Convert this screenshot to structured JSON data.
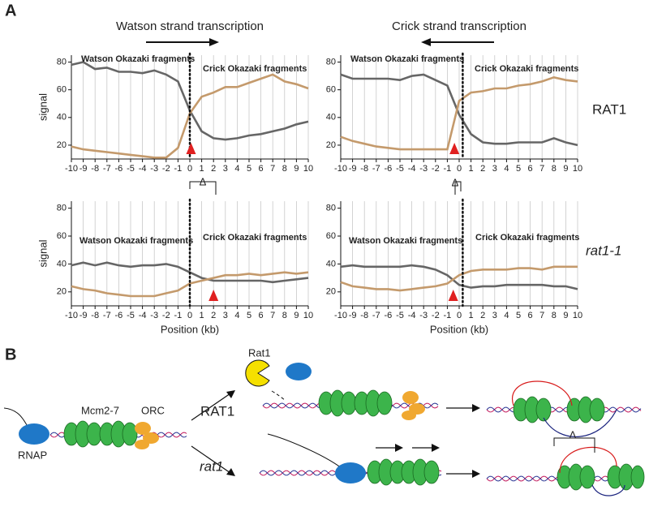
{
  "chart_data": [
    {
      "type": "line",
      "title": "Watson strand transcription",
      "ylabel": "signal",
      "x": [
        -10,
        -9,
        -8,
        -7,
        -6,
        -5,
        -4,
        -3,
        -2,
        -1,
        0,
        1,
        2,
        3,
        4,
        5,
        6,
        7,
        8,
        9,
        10
      ],
      "xlim": [
        -10,
        10
      ],
      "xticks": [
        -10,
        -9,
        -8,
        -7,
        -6,
        -5,
        -4,
        -3,
        -2,
        -1,
        0,
        1,
        2,
        3,
        4,
        5,
        6,
        7,
        8,
        9,
        10
      ],
      "ylim": [
        10,
        85
      ],
      "yticks": [
        20,
        40,
        60,
        80
      ],
      "grid": true,
      "origin_x": 0,
      "peak_x": 0.1,
      "series": [
        {
          "name": "Watson Okazaki fragments",
          "color": "#666666",
          "values": [
            78,
            80,
            75,
            76,
            73,
            73,
            72,
            74,
            71,
            66,
            45,
            30,
            25,
            24,
            25,
            27,
            28,
            30,
            32,
            35,
            37
          ]
        },
        {
          "name": "Crick Okazaki fragments",
          "color": "#c49a6c",
          "values": [
            19,
            17,
            16,
            15,
            14,
            13,
            12,
            11,
            11,
            18,
            43,
            55,
            58,
            62,
            62,
            65,
            68,
            71,
            66,
            64,
            61
          ]
        }
      ]
    },
    {
      "type": "line",
      "title": "Crick strand transcription",
      "x": [
        -10,
        -9,
        -8,
        -7,
        -6,
        -5,
        -4,
        -3,
        -2,
        -1,
        0,
        1,
        2,
        3,
        4,
        5,
        6,
        7,
        8,
        9,
        10
      ],
      "xlim": [
        -10,
        10
      ],
      "xticks": [
        -10,
        -9,
        -8,
        -7,
        -6,
        -5,
        -4,
        -3,
        -2,
        -1,
        0,
        1,
        2,
        3,
        4,
        5,
        6,
        7,
        8,
        9,
        10
      ],
      "ylim": [
        10,
        85
      ],
      "yticks": [
        20,
        40,
        60,
        80
      ],
      "grid": true,
      "origin_x": 0.3,
      "peak_x": -0.4,
      "series": [
        {
          "name": "Watson Okazaki fragments",
          "color": "#666666",
          "values": [
            71,
            68,
            68,
            68,
            68,
            67,
            70,
            71,
            67,
            63,
            42,
            28,
            22,
            21,
            21,
            22,
            22,
            22,
            25,
            22,
            20
          ]
        },
        {
          "name": "Crick Okazaki fragments",
          "color": "#c49a6c",
          "values": [
            26,
            23,
            21,
            19,
            18,
            17,
            17,
            17,
            17,
            17,
            52,
            58,
            59,
            61,
            61,
            63,
            64,
            66,
            69,
            67,
            66
          ]
        }
      ]
    },
    {
      "type": "line",
      "ylabel": "signal",
      "xlabel": "Position (kb)",
      "x": [
        -10,
        -9,
        -8,
        -7,
        -6,
        -5,
        -4,
        -3,
        -2,
        -1,
        0,
        1,
        2,
        3,
        4,
        5,
        6,
        7,
        8,
        9,
        10
      ],
      "xlim": [
        -10,
        10
      ],
      "xticks": [
        -10,
        -9,
        -8,
        -7,
        -6,
        -5,
        -4,
        -3,
        -2,
        -1,
        0,
        1,
        2,
        3,
        4,
        5,
        6,
        7,
        8,
        9,
        10
      ],
      "ylim": [
        10,
        85
      ],
      "yticks": [
        20,
        40,
        60,
        80
      ],
      "grid": true,
      "origin_x": 0,
      "peak_x": 2.0,
      "series": [
        {
          "name": "Watson Okazaki fragments",
          "color": "#666666",
          "values": [
            39,
            41,
            39,
            41,
            39,
            38,
            39,
            39,
            40,
            38,
            34,
            30,
            28,
            28,
            28,
            28,
            28,
            27,
            28,
            29,
            30
          ]
        },
        {
          "name": "Crick Okazaki fragments",
          "color": "#c49a6c",
          "values": [
            24,
            22,
            21,
            19,
            18,
            17,
            17,
            17,
            19,
            21,
            26,
            28,
            30,
            32,
            32,
            33,
            32,
            33,
            34,
            33,
            34
          ]
        }
      ]
    },
    {
      "type": "line",
      "xlabel": "Position (kb)",
      "x": [
        -10,
        -9,
        -8,
        -7,
        -6,
        -5,
        -4,
        -3,
        -2,
        -1,
        0,
        1,
        2,
        3,
        4,
        5,
        6,
        7,
        8,
        9,
        10
      ],
      "xlim": [
        -10,
        10
      ],
      "xticks": [
        -10,
        -9,
        -8,
        -7,
        -6,
        -5,
        -4,
        -3,
        -2,
        -1,
        0,
        1,
        2,
        3,
        4,
        5,
        6,
        7,
        8,
        9,
        10
      ],
      "ylim": [
        10,
        85
      ],
      "yticks": [
        20,
        40,
        60,
        80
      ],
      "grid": true,
      "origin_x": 0.3,
      "peak_x": -0.5,
      "series": [
        {
          "name": "Watson Okazaki fragments",
          "color": "#666666",
          "values": [
            38,
            39,
            38,
            38,
            38,
            38,
            39,
            38,
            36,
            32,
            25,
            23,
            24,
            24,
            25,
            25,
            25,
            25,
            24,
            24,
            22
          ]
        },
        {
          "name": "Crick Okazaki fragments",
          "color": "#c49a6c",
          "values": [
            27,
            24,
            23,
            22,
            22,
            21,
            22,
            23,
            24,
            26,
            32,
            35,
            36,
            36,
            36,
            37,
            37,
            36,
            38,
            38,
            38
          ]
        }
      ]
    }
  ],
  "figure": {
    "panel_a": "A",
    "panel_b": "B",
    "row_top": "RAT1",
    "row_bottom": "rat1-1",
    "delta_1": "Δ",
    "delta_2": "Δ",
    "delta_3": "Δ",
    "rat1": "Rat1",
    "mcm": "Mcm2-7",
    "orc": "ORC",
    "rnap": "RNAP",
    "branch_rat1": "RAT1",
    "branch_mut": "rat1"
  }
}
